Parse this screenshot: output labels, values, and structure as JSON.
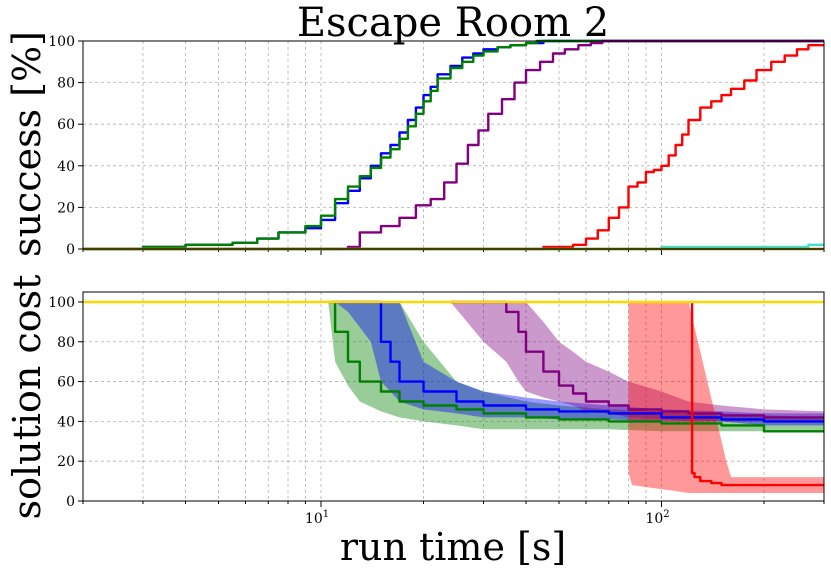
{
  "chart_data": [
    {
      "type": "line",
      "panel": "top",
      "title": "Escape Room 2",
      "xlabel": "",
      "ylabel": "success [%]",
      "xscale": "log",
      "xlim": [
        2,
        300
      ],
      "ylim": [
        0,
        100
      ],
      "yticks": [
        0,
        20,
        40,
        60,
        80,
        100
      ],
      "grid": true,
      "series": [
        {
          "color": "#0000ff",
          "x": [
            2,
            2.9,
            3,
            4,
            5.5,
            6.5,
            7.5,
            9,
            10,
            11,
            12,
            13,
            14,
            15,
            16,
            17,
            18,
            19,
            20,
            21,
            22,
            24,
            26,
            28,
            30,
            33,
            36,
            40,
            45,
            55,
            70,
            100,
            200,
            300
          ],
          "y": [
            0,
            0,
            1,
            2,
            3,
            5,
            8,
            10,
            14,
            22,
            28,
            34,
            40,
            46,
            50,
            56,
            62,
            68,
            74,
            78,
            84,
            88,
            92,
            94,
            96,
            97,
            98,
            99,
            100,
            100,
            100,
            100,
            100,
            100
          ]
        },
        {
          "color": "#008000",
          "x": [
            2,
            2.9,
            3,
            4,
            5.5,
            6.5,
            7.5,
            9,
            10,
            11,
            12,
            13,
            14,
            15,
            16,
            17,
            18,
            19,
            20,
            21,
            22,
            24,
            26,
            28,
            30,
            33,
            36,
            40,
            43,
            55,
            70,
            100,
            200,
            300
          ],
          "y": [
            0,
            0,
            1,
            2,
            3,
            5,
            8,
            11,
            16,
            24,
            30,
            35,
            39,
            44,
            48,
            53,
            59,
            65,
            71,
            76,
            82,
            87,
            90,
            93,
            95,
            97,
            98,
            99,
            100,
            100,
            100,
            100,
            100,
            100
          ]
        },
        {
          "color": "#800080",
          "x": [
            2,
            10.5,
            12,
            13,
            15,
            17,
            19,
            21,
            23,
            25,
            27,
            29,
            31,
            34,
            37,
            40,
            44,
            48,
            52,
            57,
            62,
            67,
            100,
            300
          ],
          "y": [
            0,
            0,
            1,
            8,
            11,
            15,
            21,
            24,
            32,
            41,
            50,
            57,
            65,
            72,
            80,
            86,
            90,
            94,
            96,
            98,
            99,
            100,
            100,
            100
          ]
        },
        {
          "color": "#ff0000",
          "x": [
            2,
            40,
            45,
            50,
            55,
            60,
            65,
            70,
            75,
            80,
            85,
            90,
            95,
            100,
            105,
            110,
            115,
            120,
            130,
            140,
            150,
            160,
            175,
            190,
            210,
            230,
            250,
            270,
            300
          ],
          "y": [
            0,
            0,
            1,
            1,
            2,
            5,
            9,
            15,
            20,
            30,
            32,
            37,
            38,
            40,
            45,
            50,
            55,
            62,
            68,
            71,
            74,
            77,
            81,
            86,
            90,
            93,
            96,
            98,
            98
          ]
        },
        {
          "color": "#40e0d0",
          "x": [
            2,
            98,
            100,
            200,
            250,
            270,
            300
          ],
          "y": [
            0,
            0,
            1,
            1,
            1,
            2,
            2
          ]
        },
        {
          "color": "#808000",
          "x": [
            2,
            300
          ],
          "y": [
            0,
            0
          ]
        }
      ]
    },
    {
      "type": "line",
      "panel": "bottom",
      "xlabel": "run time [s]",
      "ylabel": "solution cost",
      "xscale": "log",
      "xlim": [
        2,
        300
      ],
      "xticks": [
        10,
        100
      ],
      "xticklabels": [
        "10^1",
        "10^2"
      ],
      "ylim": [
        0,
        105
      ],
      "yticks": [
        0,
        20,
        40,
        60,
        80,
        100
      ],
      "grid": true,
      "series": [
        {
          "color": "#008000",
          "x": [
            10.5,
            11,
            12,
            13,
            15,
            17,
            20,
            25,
            30,
            40,
            50,
            70,
            100,
            150,
            200,
            300
          ],
          "y": [
            100,
            85,
            70,
            60,
            55,
            50,
            48,
            46,
            44,
            42,
            41,
            40,
            39,
            38,
            35,
            35
          ],
          "band_low": [
            100,
            70,
            58,
            50,
            45,
            42,
            40,
            38,
            36,
            36,
            36,
            36,
            35,
            35,
            35,
            35
          ],
          "band_high": [
            100,
            100,
            100,
            100,
            100,
            100,
            80,
            60,
            55,
            50,
            48,
            46,
            45,
            44,
            43,
            42
          ]
        },
        {
          "color": "#0000ff",
          "x": [
            11,
            12,
            14,
            15,
            16,
            17,
            20,
            25,
            30,
            40,
            50,
            70,
            100,
            150,
            200,
            300
          ],
          "y": [
            100,
            100,
            100,
            80,
            70,
            60,
            55,
            50,
            48,
            46,
            45,
            44,
            42,
            41,
            40,
            40
          ],
          "band_low": [
            100,
            95,
            80,
            60,
            55,
            50,
            46,
            44,
            42,
            42,
            41,
            41,
            40,
            40,
            38,
            38
          ],
          "band_high": [
            100,
            100,
            100,
            100,
            100,
            100,
            70,
            60,
            55,
            52,
            50,
            48,
            46,
            45,
            44,
            44
          ]
        },
        {
          "color": "#800080",
          "x": [
            24,
            30,
            35,
            38,
            40,
            45,
            50,
            55,
            60,
            70,
            80,
            100,
            120,
            150,
            200,
            300
          ],
          "y": [
            100,
            100,
            95,
            85,
            75,
            65,
            58,
            54,
            50,
            48,
            46,
            45,
            44,
            43,
            42,
            42
          ],
          "band_low": [
            100,
            80,
            70,
            60,
            55,
            52,
            50,
            48,
            45,
            44,
            42,
            41,
            40,
            40,
            40,
            40
          ],
          "band_high": [
            100,
            100,
            100,
            100,
            100,
            90,
            80,
            75,
            70,
            65,
            60,
            55,
            50,
            48,
            46,
            45
          ]
        },
        {
          "color": "#ff0000",
          "x": [
            122,
            123,
            125,
            130,
            140,
            150,
            160,
            175,
            200,
            250,
            300
          ],
          "y": [
            100,
            14,
            12,
            10,
            9,
            8,
            8,
            8,
            8,
            8,
            8
          ],
          "band_low": [
            14,
            8,
            7,
            6,
            5,
            4,
            4,
            4,
            4,
            4,
            4
          ],
          "band_high": [
            100,
            100,
            100,
            100,
            100,
            100,
            20,
            12,
            12,
            12,
            12
          ],
          "band_x": [
            80,
            82,
            90,
            100,
            110,
            120,
            155,
            160,
            200,
            250,
            300
          ]
        },
        {
          "color": "#ffd700",
          "x": [
            2,
            300
          ],
          "y": [
            100,
            100
          ]
        }
      ]
    }
  ]
}
